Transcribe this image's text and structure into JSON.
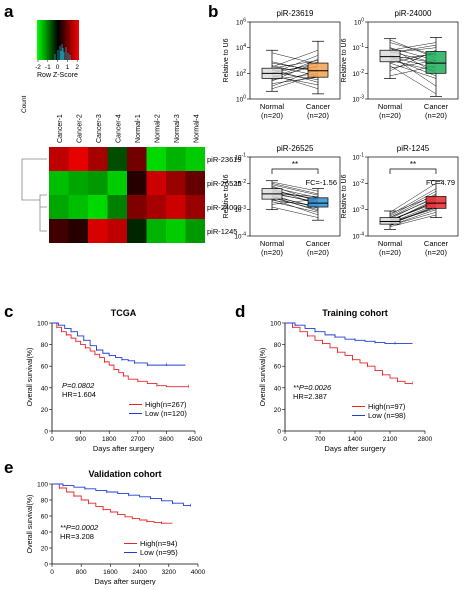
{
  "chart_data": [
    {
      "panel": "a",
      "type": "heatmap",
      "color_key": {
        "title": "Row Z-Score",
        "ylabel": "Count",
        "ticks": [
          "-2",
          "-1",
          "0",
          "1",
          "2"
        ],
        "colors": [
          "#00ff00",
          "#000000",
          "#ff0000"
        ]
      },
      "columns": [
        "Cancer-1",
        "Cancer-2",
        "Cancer-3",
        "Cancer-4",
        "Normal-1",
        "Normal-2",
        "Normal-3",
        "Normal-4"
      ],
      "rows": [
        "piR-23619",
        "piR-26525",
        "piR-24000",
        "piR-1245"
      ],
      "values": [
        [
          1.5,
          1.8,
          1.3,
          -0.6,
          0.9,
          -1.7,
          -1.4,
          -1.6
        ],
        [
          -1.5,
          -1.3,
          -1.2,
          -1.6,
          0.3,
          1.6,
          1.2,
          0.8
        ],
        [
          -1.3,
          -1.5,
          -1.7,
          -1.0,
          1.0,
          1.3,
          1.6,
          1.2
        ],
        [
          0.5,
          0.3,
          1.7,
          1.5,
          -0.3,
          -1.4,
          -1.6,
          -1.2
        ]
      ]
    },
    {
      "panel": "b",
      "type": "box",
      "title": "piR-23619",
      "ylabel": "Relative to U6",
      "yticks": [
        "10^0",
        "10^2",
        "10^4",
        "10^6"
      ],
      "ylim_log": [
        0,
        6
      ],
      "categories": [
        "Normal\n(n=20)",
        "Cancer\n(n=20)"
      ],
      "boxes": [
        {
          "q1": 1.6,
          "median": 2.0,
          "q3": 2.4,
          "min": 0.6,
          "max": 3.8
        },
        {
          "q1": 1.7,
          "median": 2.2,
          "q3": 2.8,
          "min": 0.4,
          "max": 4.5
        }
      ],
      "colors": [
        "#dcdcdc",
        "#f6a24f"
      ],
      "pair_lines": [
        [
          1.7,
          2.6
        ],
        [
          2.3,
          1.3
        ],
        [
          1.4,
          2.9
        ],
        [
          2.6,
          1.8
        ],
        [
          2.0,
          3.4
        ],
        [
          1.2,
          1.7
        ],
        [
          2.8,
          2.2
        ],
        [
          1.9,
          0.8
        ],
        [
          2.4,
          3.0
        ],
        [
          1.5,
          2.0
        ],
        [
          3.6,
          2.7
        ],
        [
          2.1,
          1.5
        ],
        [
          1.0,
          2.3
        ],
        [
          2.5,
          3.8
        ],
        [
          1.8,
          1.1
        ],
        [
          2.2,
          2.5
        ],
        [
          0.8,
          1.9
        ],
        [
          2.9,
          2.1
        ],
        [
          1.6,
          3.1
        ],
        [
          2.0,
          2.8
        ]
      ],
      "annotations": []
    },
    {
      "panel": "b",
      "type": "box",
      "title": "piR-24000",
      "ylabel": "Relative to U6",
      "yticks": [
        "10^-3",
        "10^-2",
        "10^-1",
        "10^0"
      ],
      "ylim_log": [
        -3,
        0
      ],
      "categories": [
        "Normal\n(n=20)",
        "Cancer\n(n=20)"
      ],
      "boxes": [
        {
          "q1": -1.55,
          "median": -1.35,
          "q3": -1.1,
          "min": -2.2,
          "max": -0.65
        },
        {
          "q1": -2.0,
          "median": -1.6,
          "q3": -1.15,
          "min": -2.9,
          "max": -0.6
        }
      ],
      "colors": [
        "#dcdcdc",
        "#1fae5a"
      ],
      "pair_lines": [
        [
          -1.2,
          -1.0
        ],
        [
          -1.4,
          -2.1
        ],
        [
          -1.0,
          -1.5
        ],
        [
          -1.6,
          -1.2
        ],
        [
          -1.3,
          -2.5
        ],
        [
          -0.8,
          -1.3
        ],
        [
          -1.5,
          -1.9
        ],
        [
          -1.9,
          -1.1
        ],
        [
          -1.1,
          -0.8
        ],
        [
          -1.7,
          -2.8
        ],
        [
          -1.3,
          -1.6
        ],
        [
          -2.1,
          -1.7
        ],
        [
          -1.0,
          -2.0
        ],
        [
          -1.45,
          -1.25
        ],
        [
          -0.7,
          -1.4
        ],
        [
          -1.6,
          -2.2
        ],
        [
          -1.2,
          -0.9
        ],
        [
          -1.8,
          -1.5
        ],
        [
          -1.35,
          -1.8
        ],
        [
          -1.15,
          -1.6
        ]
      ],
      "annotations": []
    },
    {
      "panel": "b",
      "type": "box",
      "title": "piR-26525",
      "ylabel": "Relative to U6",
      "yticks": [
        "10^-4",
        "10^-3",
        "10^-2",
        "10^-1"
      ],
      "ylim_log": [
        -4,
        -1
      ],
      "categories": [
        "Normal\n(n=20)",
        "Cancer\n(n=20)"
      ],
      "boxes": [
        {
          "q1": -2.6,
          "median": -2.4,
          "q3": -2.2,
          "min": -3.0,
          "max": -1.9
        },
        {
          "q1": -2.9,
          "median": -2.75,
          "q3": -2.55,
          "min": -3.4,
          "max": -2.2
        }
      ],
      "colors": [
        "#dcdcdc",
        "#2f8fd8"
      ],
      "pair_lines": [
        [
          -2.3,
          -2.6
        ],
        [
          -2.5,
          -2.9
        ],
        [
          -2.1,
          -2.7
        ],
        [
          -2.7,
          -3.1
        ],
        [
          -2.4,
          -2.5
        ],
        [
          -2.2,
          -2.8
        ],
        [
          -2.6,
          -3.2
        ],
        [
          -2.0,
          -2.4
        ],
        [
          -2.45,
          -2.95
        ],
        [
          -2.8,
          -2.6
        ],
        [
          -2.35,
          -2.75
        ],
        [
          -1.95,
          -2.3
        ],
        [
          -2.55,
          -3.0
        ],
        [
          -2.25,
          -2.65
        ],
        [
          -2.9,
          -3.3
        ],
        [
          -2.15,
          -2.55
        ],
        [
          -2.65,
          -2.85
        ],
        [
          -2.4,
          -2.7
        ],
        [
          -2.05,
          -2.45
        ],
        [
          -2.5,
          -3.05
        ]
      ],
      "annotations": [
        {
          "text": "**"
        },
        {
          "text": "FC=-1.56"
        }
      ]
    },
    {
      "panel": "b",
      "type": "box",
      "title": "piR-1245",
      "ylabel": "Relative to U6",
      "yticks": [
        "10^-4",
        "10^-3",
        "10^-2",
        "10^-1"
      ],
      "ylim_log": [
        -4,
        -1
      ],
      "categories": [
        "Normal\n(n=20)",
        "Cancer\n(n=20)"
      ],
      "boxes": [
        {
          "q1": -3.55,
          "median": -3.45,
          "q3": -3.3,
          "min": -3.75,
          "max": -3.05
        },
        {
          "q1": -2.95,
          "median": -2.75,
          "q3": -2.5,
          "min": -3.3,
          "max": -1.9
        }
      ],
      "colors": [
        "#dcdcdc",
        "#e8262a"
      ],
      "pair_lines": [
        [
          -3.4,
          -2.7
        ],
        [
          -3.5,
          -2.9
        ],
        [
          -3.3,
          -2.4
        ],
        [
          -3.6,
          -3.1
        ],
        [
          -3.45,
          -2.6
        ],
        [
          -3.2,
          -2.2
        ],
        [
          -3.55,
          -2.85
        ],
        [
          -3.35,
          -2.5
        ],
        [
          -3.65,
          -3.2
        ],
        [
          -3.4,
          -2.75
        ],
        [
          -3.25,
          -2.3
        ],
        [
          -3.5,
          -2.95
        ],
        [
          -3.1,
          -2.0
        ],
        [
          -3.45,
          -2.65
        ],
        [
          -3.6,
          -3.0
        ],
        [
          -3.3,
          -2.55
        ],
        [
          -3.5,
          -2.8
        ],
        [
          -3.15,
          -2.45
        ],
        [
          -3.4,
          -2.7
        ],
        [
          -3.55,
          -2.9
        ]
      ],
      "annotations": [
        {
          "text": "**"
        },
        {
          "text": "FC=4.79"
        }
      ]
    },
    {
      "panel": "c",
      "type": "line",
      "title": "TCGA",
      "xlabel": "Days after surgery",
      "ylabel": "Overall survival(%)",
      "xlim": [
        0,
        4500
      ],
      "xticks": [
        0,
        900,
        1800,
        2700,
        3600,
        4500
      ],
      "ylim": [
        0,
        100
      ],
      "yticks": [
        0,
        20,
        40,
        60,
        80,
        100
      ],
      "stats": [
        "P=0.0802",
        "HR=1.604"
      ],
      "series": [
        {
          "name": "High(n=267)",
          "color": "#e8262a",
          "points": [
            [
              0,
              100
            ],
            [
              150,
              96
            ],
            [
              300,
              92
            ],
            [
              450,
              89
            ],
            [
              600,
              86
            ],
            [
              750,
              83
            ],
            [
              900,
              80
            ],
            [
              1050,
              77
            ],
            [
              1200,
              74
            ],
            [
              1350,
              71
            ],
            [
              1500,
              68
            ],
            [
              1650,
              64
            ],
            [
              1800,
              61
            ],
            [
              1950,
              57
            ],
            [
              2100,
              54
            ],
            [
              2250,
              51
            ],
            [
              2400,
              48
            ],
            [
              2700,
              46
            ],
            [
              3000,
              44
            ],
            [
              3300,
              42
            ],
            [
              3600,
              41
            ],
            [
              4300,
              41
            ]
          ]
        },
        {
          "name": "Low (n=120)",
          "color": "#1f3fd1",
          "points": [
            [
              0,
              100
            ],
            [
              200,
              98
            ],
            [
              400,
              95
            ],
            [
              600,
              92
            ],
            [
              800,
              88
            ],
            [
              1000,
              84
            ],
            [
              1200,
              79
            ],
            [
              1400,
              75
            ],
            [
              1600,
              72
            ],
            [
              1800,
              70
            ],
            [
              2000,
              68
            ],
            [
              2200,
              66
            ],
            [
              2400,
              65
            ],
            [
              2600,
              63
            ],
            [
              2800,
              63
            ],
            [
              3000,
              61
            ],
            [
              3300,
              61
            ],
            [
              3600,
              61
            ],
            [
              4200,
              61
            ]
          ]
        }
      ]
    },
    {
      "panel": "d",
      "type": "line",
      "title": "Training cohort",
      "xlabel": "Days after surgery",
      "ylabel": "Overall survival(%)",
      "xlim": [
        0,
        2800
      ],
      "xticks": [
        0,
        700,
        1400,
        2100,
        2800
      ],
      "ylim": [
        0,
        100
      ],
      "yticks": [
        0,
        20,
        40,
        60,
        80,
        100
      ],
      "stats": [
        "**P=0.0026",
        "HR=2.387"
      ],
      "series": [
        {
          "name": "High(n=97)",
          "color": "#e8262a",
          "points": [
            [
              0,
              100
            ],
            [
              150,
              96
            ],
            [
              300,
              92
            ],
            [
              450,
              88
            ],
            [
              600,
              84
            ],
            [
              750,
              81
            ],
            [
              900,
              77
            ],
            [
              1050,
              73
            ],
            [
              1200,
              70
            ],
            [
              1350,
              66
            ],
            [
              1500,
              63
            ],
            [
              1650,
              60
            ],
            [
              1800,
              56
            ],
            [
              1950,
              52
            ],
            [
              2100,
              49
            ],
            [
              2250,
              46
            ],
            [
              2400,
              44
            ],
            [
              2550,
              44
            ]
          ]
        },
        {
          "name": "Low (n=98)",
          "color": "#1f3fd1",
          "points": [
            [
              0,
              100
            ],
            [
              200,
              98
            ],
            [
              400,
              95
            ],
            [
              600,
              92
            ],
            [
              800,
              89
            ],
            [
              1000,
              87
            ],
            [
              1200,
              85
            ],
            [
              1400,
              84
            ],
            [
              1600,
              83
            ],
            [
              1800,
              82
            ],
            [
              2000,
              81
            ],
            [
              2200,
              81
            ],
            [
              2550,
              81
            ]
          ]
        }
      ]
    },
    {
      "panel": "e",
      "type": "line",
      "title": "Validation cohort",
      "xlabel": "Days after surgery",
      "ylabel": "Overall survival(%)",
      "xlim": [
        0,
        4000
      ],
      "xticks": [
        0,
        800,
        1600,
        2400,
        3200,
        4000
      ],
      "ylim": [
        0,
        100
      ],
      "yticks": [
        0,
        20,
        40,
        60,
        80,
        100
      ],
      "stats": [
        "**P=0.0002",
        "HR=3.208"
      ],
      "series": [
        {
          "name": "High(n=94)",
          "color": "#e8262a",
          "points": [
            [
              0,
              100
            ],
            [
              200,
              95
            ],
            [
              400,
              90
            ],
            [
              600,
              85
            ],
            [
              800,
              80
            ],
            [
              1000,
              76
            ],
            [
              1200,
              72
            ],
            [
              1400,
              68
            ],
            [
              1600,
              65
            ],
            [
              1800,
              62
            ],
            [
              2000,
              59
            ],
            [
              2200,
              57
            ],
            [
              2400,
              55
            ],
            [
              2600,
              53
            ],
            [
              2800,
              52
            ],
            [
              3000,
              51
            ],
            [
              3300,
              51
            ]
          ]
        },
        {
          "name": "Low (n=95)",
          "color": "#1f3fd1",
          "points": [
            [
              0,
              100
            ],
            [
              300,
              98
            ],
            [
              600,
              96
            ],
            [
              900,
              94
            ],
            [
              1200,
              92
            ],
            [
              1500,
              90
            ],
            [
              1800,
              88
            ],
            [
              2100,
              86
            ],
            [
              2400,
              84
            ],
            [
              2700,
              82
            ],
            [
              3000,
              79
            ],
            [
              3300,
              76
            ],
            [
              3600,
              73
            ],
            [
              3800,
              73
            ]
          ]
        }
      ]
    }
  ],
  "panel_labels": [
    "a",
    "b",
    "c",
    "d",
    "e"
  ]
}
